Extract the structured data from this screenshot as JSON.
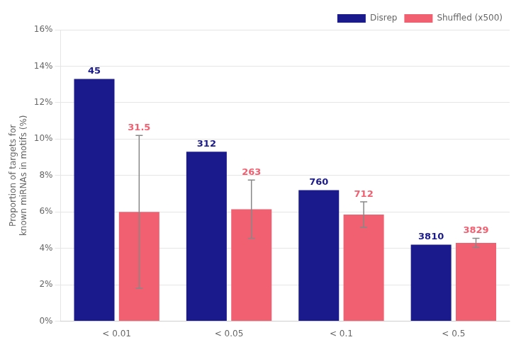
{
  "chart_data": {
    "type": "bar",
    "categories": [
      "< 0.01",
      "< 0.05",
      "< 0.1",
      "< 0.5"
    ],
    "series": [
      {
        "name": "Disrep",
        "color": "#1a1a8c",
        "values": [
          13.3,
          9.3,
          7.2,
          4.2
        ],
        "annotations": [
          "45",
          "312",
          "760",
          "3810"
        ]
      },
      {
        "name": "Shuffled (x500)",
        "color": "#f06070",
        "values": [
          6.0,
          6.15,
          5.85,
          4.3
        ],
        "errors": [
          4.2,
          1.6,
          0.7,
          0.25
        ],
        "annotations": [
          "31.5",
          "263",
          "712",
          "3829"
        ]
      }
    ],
    "y_label": "Proportion of targets for\nknown miRNAs in motifs (%)",
    "ylim": [
      0,
      16
    ],
    "yticks": [
      {
        "value": 0,
        "label": "0%"
      },
      {
        "value": 2,
        "label": "2%"
      },
      {
        "value": 4,
        "label": "4%"
      },
      {
        "value": 6,
        "label": "6%"
      },
      {
        "value": 8,
        "label": "8%"
      },
      {
        "value": 10,
        "label": "10%"
      },
      {
        "value": 12,
        "label": "12%"
      },
      {
        "value": 14,
        "label": "14%"
      },
      {
        "value": 16,
        "label": "16%"
      }
    ],
    "grid": true,
    "legend": "upper right"
  }
}
